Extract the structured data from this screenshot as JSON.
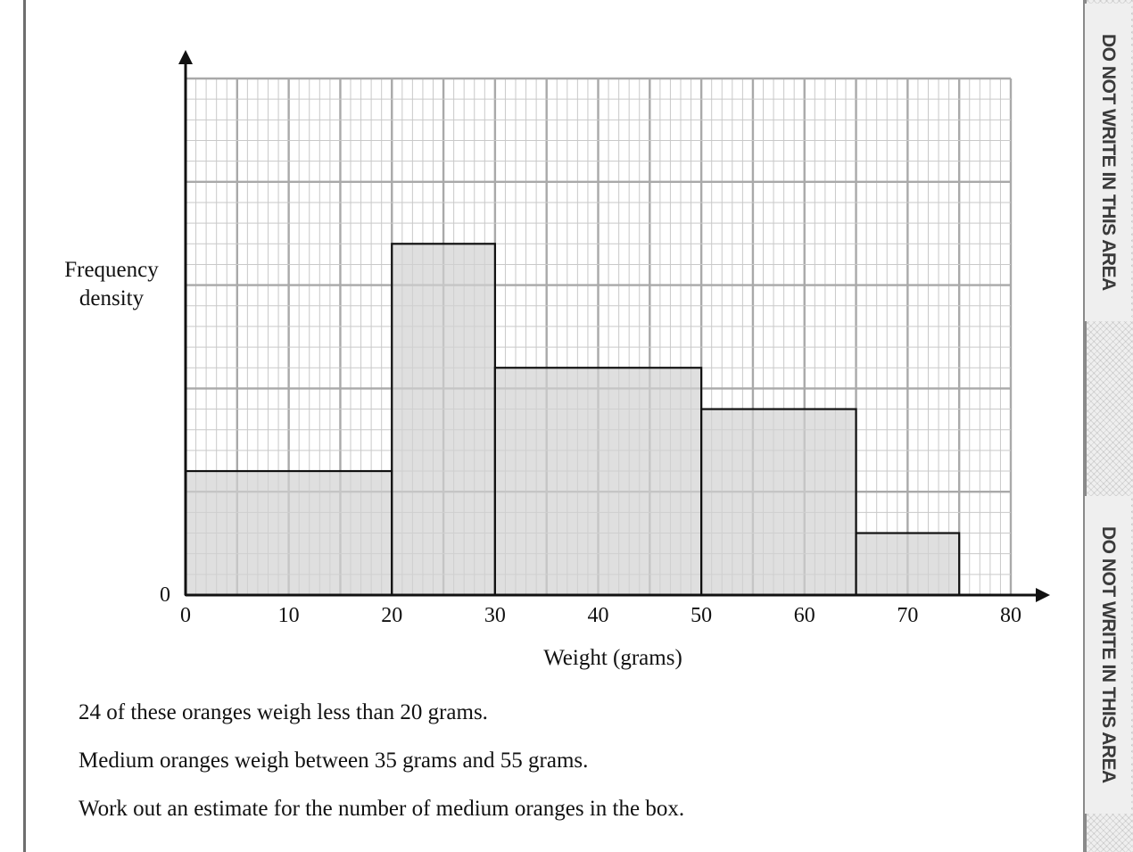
{
  "margin_notice": [
    "DO NOT WRITE IN THIS AREA",
    "DO NOT WRITE IN THIS AREA"
  ],
  "chart_data": {
    "type": "bar",
    "subtype": "histogram",
    "ylabel": "Frequency density",
    "xlabel": "Weight (grams)",
    "xlim": [
      0,
      80
    ],
    "x_ticks": [
      0,
      10,
      20,
      30,
      40,
      50,
      60,
      70,
      80
    ],
    "y_ticks": [
      0
    ],
    "ylim": [
      0,
      25
    ],
    "grid": true,
    "grid_minor_step_x": 1,
    "grid_minor_step_y": 1,
    "grid_major_step": 5,
    "bar_color": "#d2d2d2",
    "bins": [
      {
        "from": 0,
        "to": 20,
        "height": 6
      },
      {
        "from": 20,
        "to": 30,
        "height": 17
      },
      {
        "from": 30,
        "to": 50,
        "height": 11
      },
      {
        "from": 50,
        "to": 65,
        "height": 9
      },
      {
        "from": 65,
        "to": 75,
        "height": 3
      }
    ]
  },
  "question_lines": [
    "24 of these oranges weigh less than 20 grams.",
    "Medium oranges weigh between 35 grams and 55 grams.",
    "Work out an estimate for the number of medium oranges in the box."
  ]
}
